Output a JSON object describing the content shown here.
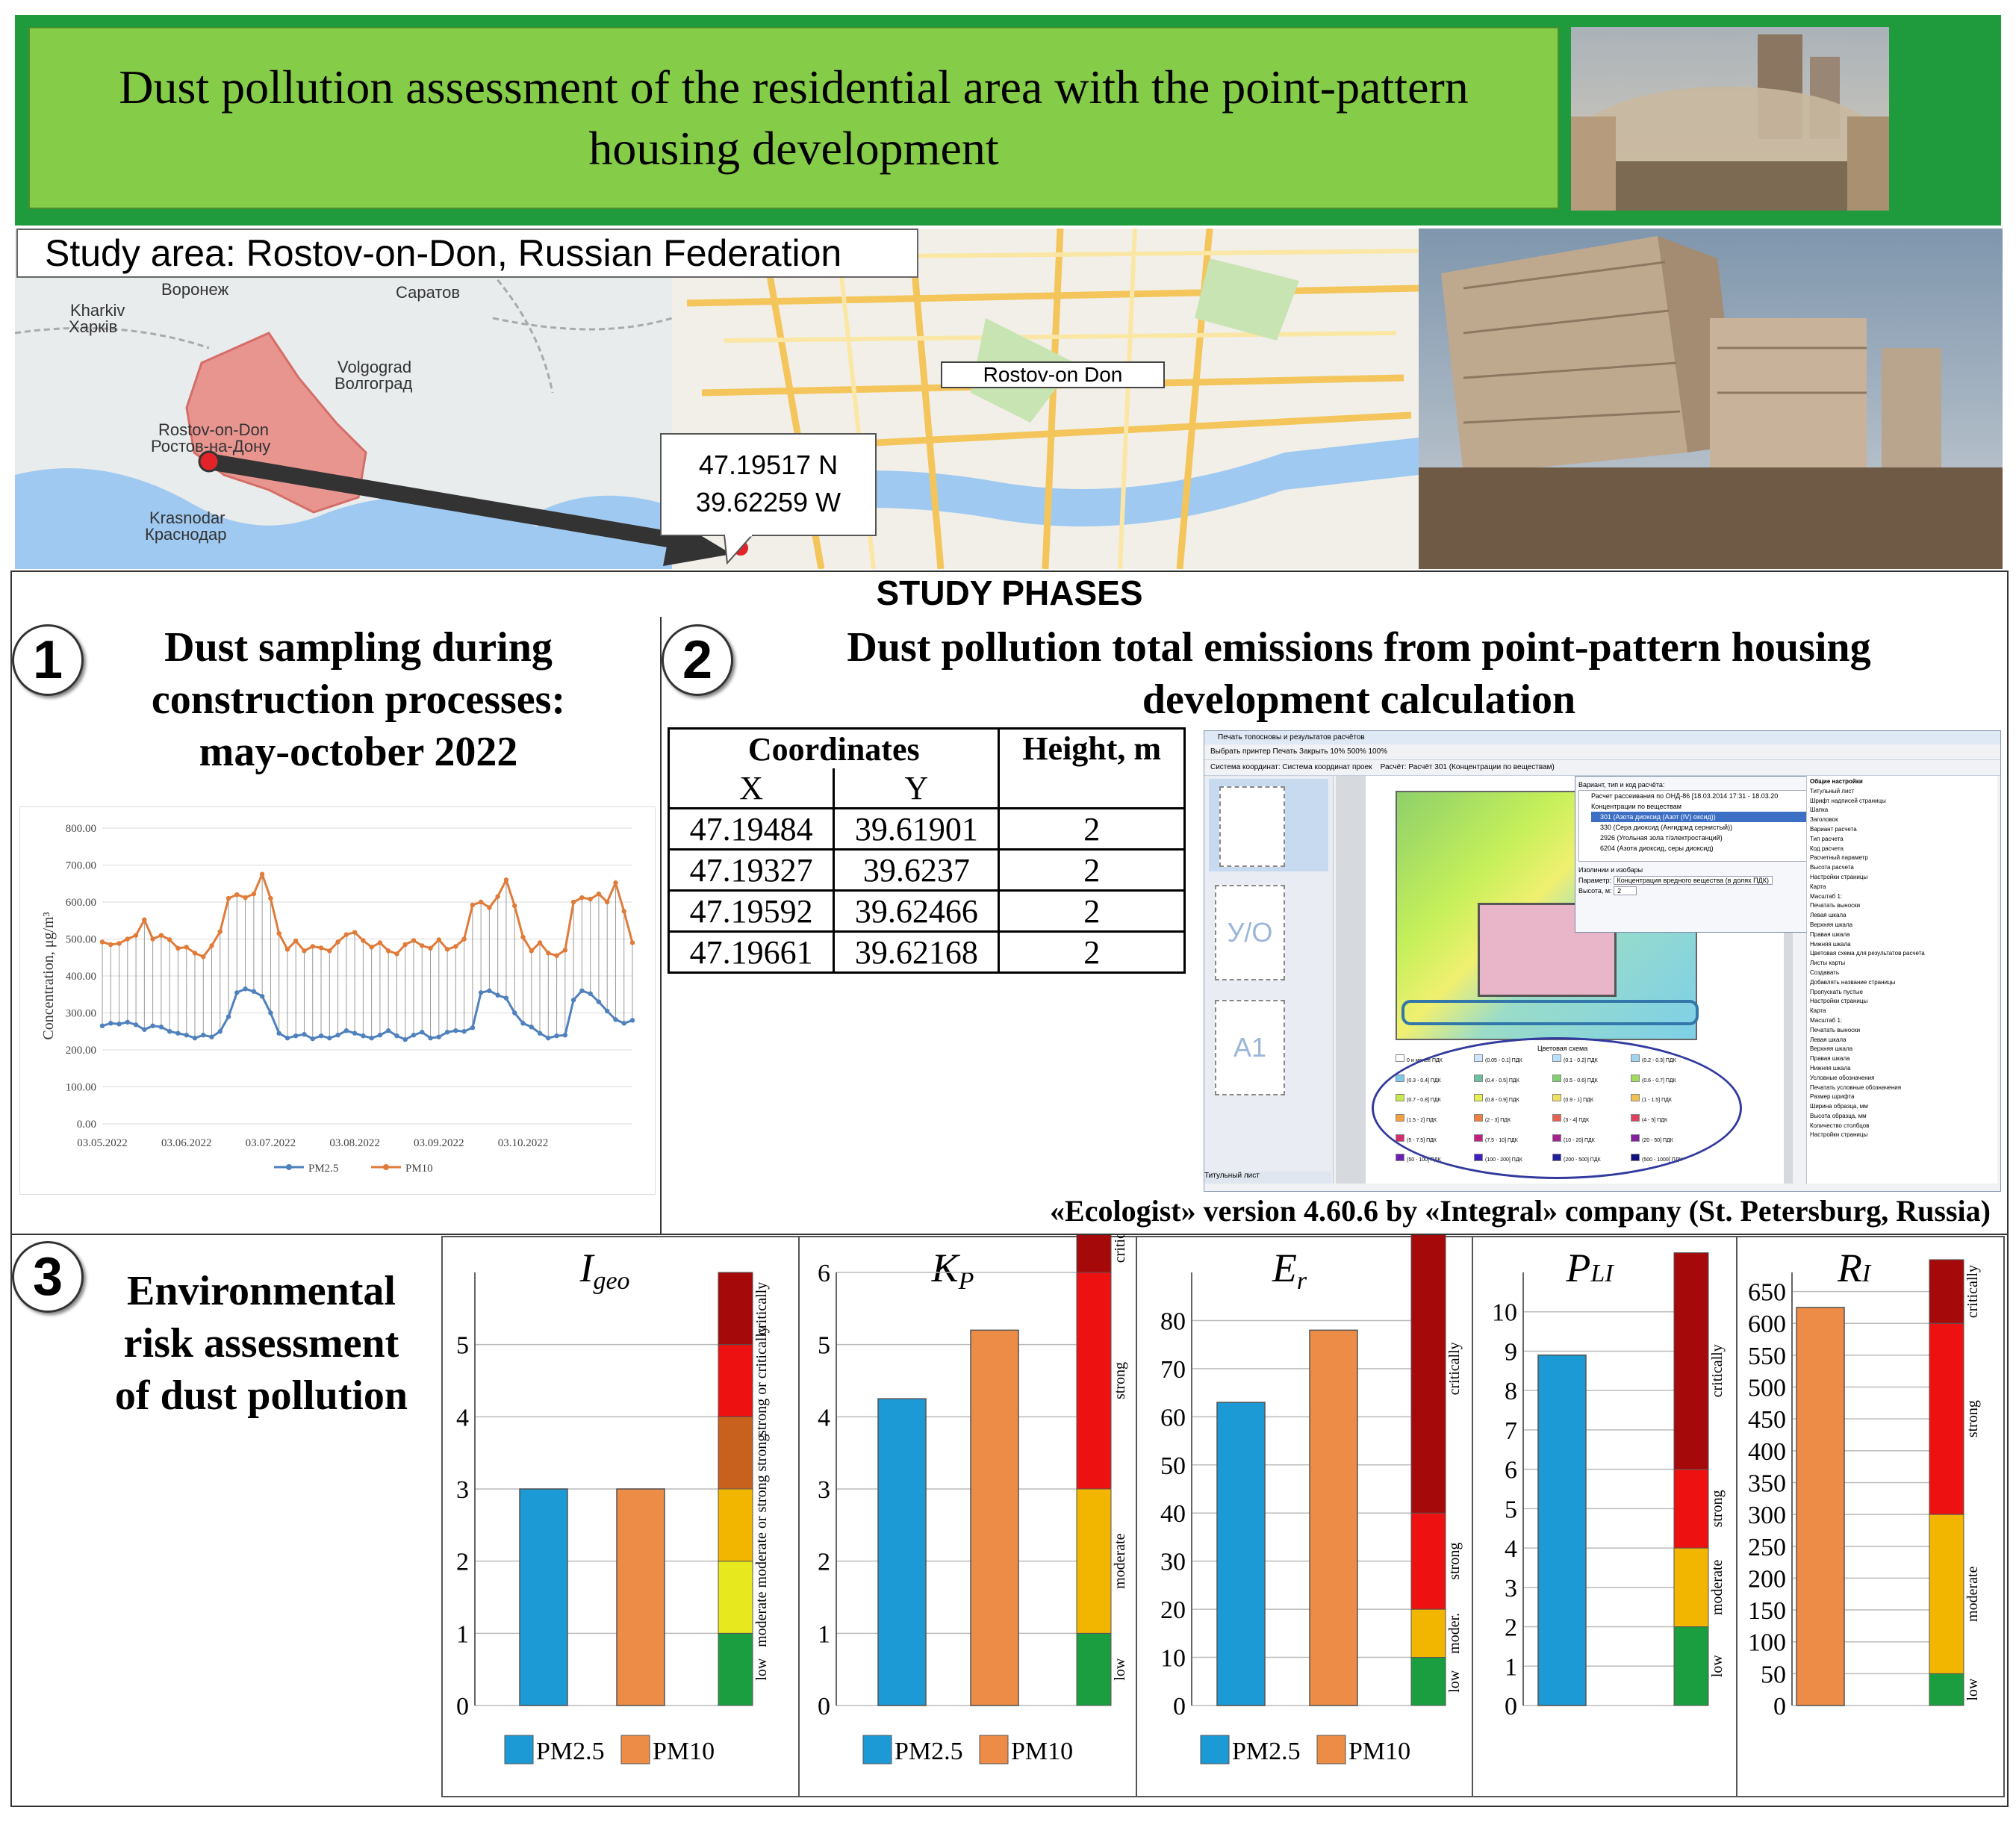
{
  "header": {
    "title": "Dust pollution assessment of the residential area with the point-pattern housing development"
  },
  "map": {
    "study_area": "Study area: Rostov-on-Don, Russian Federation",
    "cities": {
      "voronezh": "Воронеж",
      "kharkiv": "Kharkiv",
      "kharkiv_ru": "Харків",
      "saratov": "Саратов",
      "volgograd": "Volgograd",
      "volgograd_ru": "Волгоград",
      "rostov": "Rostov-on-Don",
      "rostov_ru": "Ростов-на-Дону",
      "krasnodar": "Krasnodar",
      "krasnodar_ru": "Краснодар"
    },
    "city_label": "Rostov-on Don",
    "coord_lat": "47.19517 N",
    "coord_lon": "39.62259 W"
  },
  "phases": {
    "title": "STUDY PHASES",
    "phase1": {
      "number": "1",
      "heading": "Dust sampling during construction processes: may-october 2022"
    },
    "phase2": {
      "number": "2",
      "heading": "Dust pollution total emissions from point-pattern housing development calculation",
      "software_credit": "«Ecologist» version 4.60.6 by «Integral» company (St. Petersburg, Russia)",
      "table": {
        "coord_header": "Coordinates",
        "height_header": "Height, m",
        "x_header": "X",
        "y_header": "Y",
        "rows": [
          {
            "x": "47.19484",
            "y": "39.61901",
            "h": "2"
          },
          {
            "x": "47.19327",
            "y": "39.6237",
            "h": "2"
          },
          {
            "x": "47.19592",
            "y": "39.62466",
            "h": "2"
          },
          {
            "x": "47.19661",
            "y": "39.62168",
            "h": "2"
          }
        ]
      },
      "software_panel": {
        "title": "Печать топосновы и результатов расчётов",
        "toolbar": "Выбрать принтер   Печать   Закрыть   10%   500%   100%",
        "system_label": "Система координат:  Система координат проек",
        "calc_label": "Расчёт:  Расчёт 301 (Концентрации по веществам)",
        "sheet_uo": "У/О",
        "sheet_a1": "А1",
        "title_sheet": "Титульный лист",
        "popup_header": "Вариант, тип и код расчёта:",
        "popup_items": [
          "Расчет рассеивания по ОНД-86 [18.03.2014 17:31 - 18.03.20",
          "Концентрации по веществам",
          "301 (Азота диоксид (Азот (IV) оксид))",
          "330 (Сера диоксид (Ангидрид сернистый))",
          "2926 (Угольная зола т/электростанций)",
          "6204 (Азота диоксид, серы диоксид)"
        ],
        "popup_isolines": "Изолинии и изобары",
        "popup_param_label": "Параметр:",
        "popup_param_value": "Концентрация вредного вещества (в долях ПДК)",
        "popup_height_label": "Высота, м:",
        "popup_height_value": "2",
        "legend_title": "Цветовая схема",
        "settings_title": "Общие настройки",
        "settings_items": [
          "Титульный лист",
          "Шрифт надписей страницы",
          "Шапка",
          "Заголовок",
          "Вариант расчета",
          "Тип расчета",
          "Код расчета",
          "Расчетный параметр",
          "Высота расчета",
          "Настройки страницы",
          "Карта",
          "Масштаб 1:",
          "Печатать выноски",
          "Левая шкала",
          "Верхняя шкала",
          "Правая шкала",
          "Нижняя шкала",
          "Цветовая схема для результатов расчета",
          "Листы карты",
          "Создавать",
          "Добавлять название страницы",
          "Пропускать пустые",
          "Настройки страницы",
          "Карта",
          "Масштаб 1:",
          "Печатать выноски",
          "Левая шкала",
          "Верхняя шкала",
          "Правая шкала",
          "Нижняя шкала",
          "Условные обозначения",
          "Печатать условные обозначения",
          "Размер шрифта",
          "Ширина образца, мм",
          "Высота образца, мм",
          "Количество столбцов",
          "Настройки страницы"
        ],
        "legend_items": [
          "0 и менее ПДК",
          "(0.05 - 0.1] ПДК",
          "(0.1 - 0.2] ПДК",
          "(0.2 - 0.3] ПДК",
          "(0.3 - 0.4] ПДК",
          "(0.4 - 0.5] ПДК",
          "(0.5 - 0.6] ПДК",
          "(0.6 - 0.7] ПДК",
          "(0.7 - 0.8] ПДК",
          "(0.8 - 0.9] ПДК",
          "(0.9 - 1] ПДК",
          "(1 - 1.5] ПДК",
          "(1.5 - 2] ПДК",
          "(2 - 3] ПДК",
          "(3 - 4] ПДК",
          "(4 - 5] ПДК",
          "(5 - 7.5] ПДК",
          "(7.5 - 10] ПДК",
          "(10 - 20] ПДК",
          "(20 - 50] ПДК",
          "(50 - 100] ПДК",
          "(100 - 200] ПДК",
          "(200 - 500] ПДК",
          "(500 - 1000] ПДК"
        ]
      }
    },
    "phase3": {
      "number": "3",
      "heading": "Environmental risk assessment of dust pollution"
    }
  },
  "chart_data": [
    {
      "type": "line",
      "ylabel": "Concentration, μg/m³",
      "ylim": [
        0,
        800
      ],
      "yticks": [
        "0.00",
        "100.00",
        "200.00",
        "300.00",
        "400.00",
        "500.00",
        "600.00",
        "700.00",
        "800.00"
      ],
      "xtick_labels": [
        "03.05.2022",
        "03.06.2022",
        "03.07.2022",
        "03.08.2022",
        "03.09.2022",
        "03.10.2022"
      ],
      "xtick_index": [
        0,
        10,
        20,
        30,
        40,
        50
      ],
      "grid": "horizontal",
      "legend": "bottom",
      "series": [
        {
          "name": "PM2.5",
          "color": "#4f81bd",
          "values": [
            265,
            272,
            270,
            275,
            268,
            255,
            265,
            262,
            250,
            245,
            240,
            232,
            240,
            235,
            250,
            290,
            355,
            365,
            358,
            345,
            300,
            245,
            232,
            238,
            242,
            230,
            238,
            232,
            240,
            252,
            245,
            238,
            232,
            240,
            252,
            238,
            228,
            240,
            248,
            232,
            235,
            248,
            252,
            250,
            260,
            355,
            360,
            348,
            340,
            300,
            272,
            262,
            245,
            232,
            238,
            240,
            335,
            360,
            352,
            330,
            305,
            282,
            272,
            280
          ]
        },
        {
          "name": "PM10",
          "color": "#e07b39",
          "values": [
            492,
            485,
            488,
            500,
            510,
            552,
            500,
            510,
            498,
            475,
            478,
            462,
            452,
            482,
            520,
            610,
            620,
            612,
            622,
            675,
            610,
            515,
            472,
            495,
            468,
            480,
            476,
            468,
            492,
            512,
            518,
            496,
            478,
            490,
            468,
            460,
            485,
            496,
            482,
            475,
            498,
            472,
            480,
            500,
            592,
            600,
            585,
            615,
            660,
            590,
            505,
            468,
            490,
            462,
            455,
            470,
            600,
            612,
            608,
            622,
            600,
            652,
            575,
            490
          ]
        }
      ]
    },
    {
      "type": "bar",
      "title": "Igeo",
      "categories": [
        "PM2.5",
        "PM10"
      ],
      "values": [
        3,
        3
      ],
      "colors": [
        "#1b9ad6",
        "#ec8c46"
      ],
      "ylim": [
        0,
        6
      ],
      "yticks": [
        0,
        1,
        2,
        3,
        4,
        5
      ],
      "scale_bands": [
        {
          "from": 0,
          "to": 1,
          "color": "#1a9e3f"
        },
        {
          "from": 1,
          "to": 2,
          "color": "#e8e81e"
        },
        {
          "from": 2,
          "to": 3,
          "color": "#f2b600"
        },
        {
          "from": 3,
          "to": 4,
          "color": "#c8611e"
        },
        {
          "from": 4,
          "to": 5,
          "color": "#ee1111"
        },
        {
          "from": 5,
          "to": 6,
          "color": "#a5090a"
        }
      ],
      "scale_labels": [
        {
          "at": 0.5,
          "text": "low"
        },
        {
          "at": 2.0,
          "text": "moderate moderate or strong"
        },
        {
          "at": 3.5,
          "text": "strong"
        },
        {
          "at": 4.5,
          "text": "strong or critically"
        },
        {
          "at": 5.5,
          "text": "critically"
        }
      ],
      "legend": "bottom"
    },
    {
      "type": "bar",
      "title": "KP",
      "categories": [
        "PM2.5",
        "PM10"
      ],
      "values": [
        4.25,
        5.2
      ],
      "colors": [
        "#1b9ad6",
        "#ec8c46"
      ],
      "ylim": [
        0,
        6
      ],
      "yticks": [
        0,
        1,
        2,
        3,
        4,
        5,
        6
      ],
      "scale_bands": [
        {
          "from": 0,
          "to": 1,
          "color": "#1a9e3f"
        },
        {
          "from": 1,
          "to": 3,
          "color": "#f2b600"
        },
        {
          "from": 3,
          "to": 6,
          "color": "#ee1111"
        },
        {
          "from": 6,
          "to": 7,
          "color": "#a5090a"
        }
      ],
      "scale_labels": [
        {
          "at": 0.5,
          "text": "low"
        },
        {
          "at": 2.0,
          "text": "moderate"
        },
        {
          "at": 4.5,
          "text": "strong"
        },
        {
          "at": 6.5,
          "text": "critically"
        }
      ],
      "legend": "bottom"
    },
    {
      "type": "bar",
      "title": "Er",
      "categories": [
        "PM2.5",
        "PM10"
      ],
      "values": [
        63,
        78
      ],
      "colors": [
        "#1b9ad6",
        "#ec8c46"
      ],
      "ylim": [
        0,
        90
      ],
      "yticks": [
        0,
        10,
        20,
        30,
        40,
        50,
        60,
        70,
        80
      ],
      "scale_bands": [
        {
          "from": 0,
          "to": 10,
          "color": "#1a9e3f"
        },
        {
          "from": 10,
          "to": 20,
          "color": "#f2b600"
        },
        {
          "from": 20,
          "to": 40,
          "color": "#ee1111"
        },
        {
          "from": 40,
          "to": 98,
          "color": "#a5090a"
        }
      ],
      "scale_labels": [
        {
          "at": 5,
          "text": "low"
        },
        {
          "at": 15,
          "text": "moder."
        },
        {
          "at": 30,
          "text": "strong"
        },
        {
          "at": 70,
          "text": "critically"
        }
      ],
      "legend": "bottom"
    },
    {
      "type": "bar",
      "title": "PLI",
      "categories": [
        "PM2.5"
      ],
      "values": [
        8.9
      ],
      "colors": [
        "#1b9ad6"
      ],
      "ylim": [
        0,
        11
      ],
      "yticks": [
        0,
        1,
        2,
        3,
        4,
        5,
        6,
        7,
        8,
        9,
        10
      ],
      "scale_bands": [
        {
          "from": 0,
          "to": 2,
          "color": "#1a9e3f"
        },
        {
          "from": 2,
          "to": 4,
          "color": "#f2b600"
        },
        {
          "from": 4,
          "to": 6,
          "color": "#ee1111"
        },
        {
          "from": 6,
          "to": 11.5,
          "color": "#a5090a"
        }
      ],
      "scale_labels": [
        {
          "at": 1,
          "text": "low"
        },
        {
          "at": 3,
          "text": "moderate"
        },
        {
          "at": 5,
          "text": "strong"
        },
        {
          "at": 8.5,
          "text": "critically"
        }
      ]
    },
    {
      "type": "bar",
      "title": "RI",
      "categories": [
        "PM10"
      ],
      "values": [
        625
      ],
      "colors": [
        "#ec8c46"
      ],
      "ylim": [
        0,
        680
      ],
      "yticks": [
        0,
        50,
        100,
        150,
        200,
        250,
        300,
        350,
        400,
        450,
        500,
        550,
        600,
        650
      ],
      "scale_bands": [
        {
          "from": 0,
          "to": 50,
          "color": "#1a9e3f"
        },
        {
          "from": 50,
          "to": 300,
          "color": "#f2b600"
        },
        {
          "from": 300,
          "to": 600,
          "color": "#ee1111"
        },
        {
          "from": 600,
          "to": 700,
          "color": "#a5090a"
        }
      ],
      "scale_labels": [
        {
          "at": 25,
          "text": "low"
        },
        {
          "at": 175,
          "text": "moderate"
        },
        {
          "at": 450,
          "text": "strong"
        },
        {
          "at": 650,
          "text": "critically"
        }
      ]
    }
  ]
}
